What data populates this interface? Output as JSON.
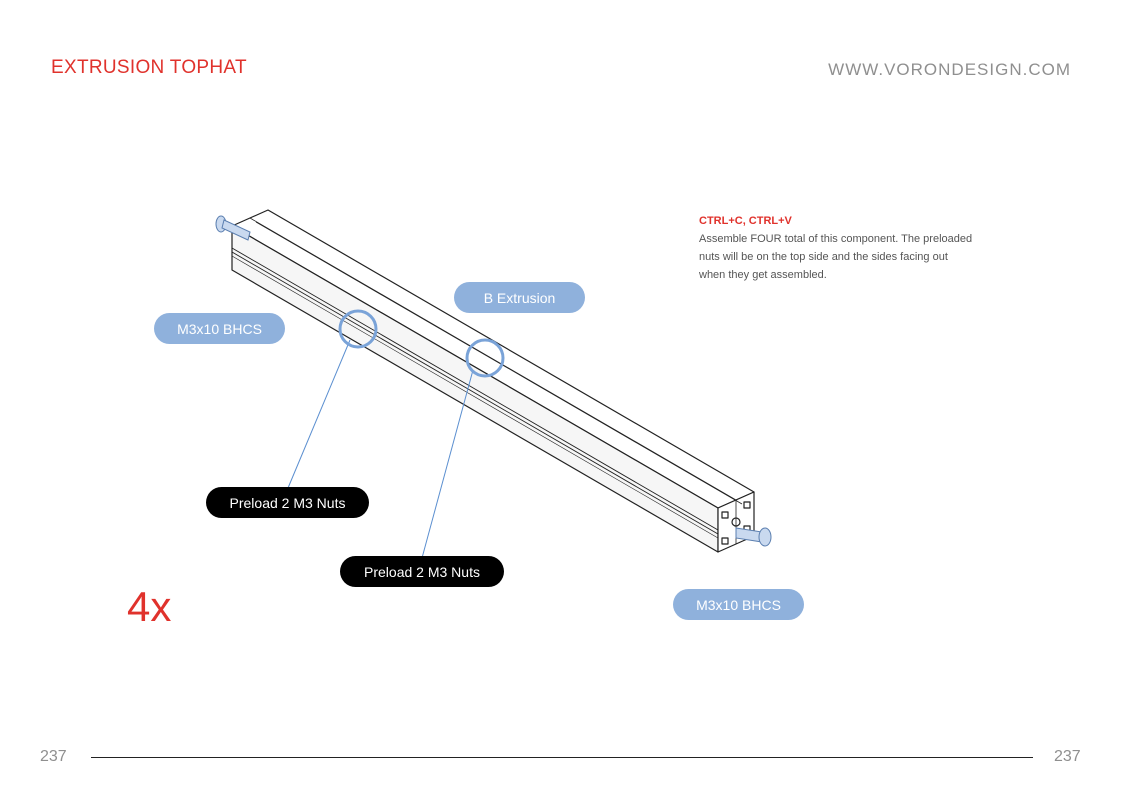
{
  "header": {
    "title": "EXTRUSION TOPHAT",
    "website": "WWW.VORONDESIGN.COM"
  },
  "note": {
    "heading": "CTRL+C, CTRL+V",
    "lines": [
      "Assemble FOUR total of this component. The preloaded",
      "nuts will be on the top side and the sides facing out",
      "when they get assembled."
    ]
  },
  "callouts": {
    "bolt_left": "M3x10 BHCS",
    "extrusion": "B Extrusion",
    "nuts_1": "Preload 2 M3 Nuts",
    "nuts_2": "Preload 2 M3 Nuts",
    "bolt_right": "M3x10 BHCS"
  },
  "quantity": "4x",
  "footer": {
    "page_left": "237",
    "page_right": "237"
  },
  "colors": {
    "accent": "#e0322c",
    "callout_blue": "#8fb1dc",
    "leader_blue": "#5b8fd0"
  }
}
